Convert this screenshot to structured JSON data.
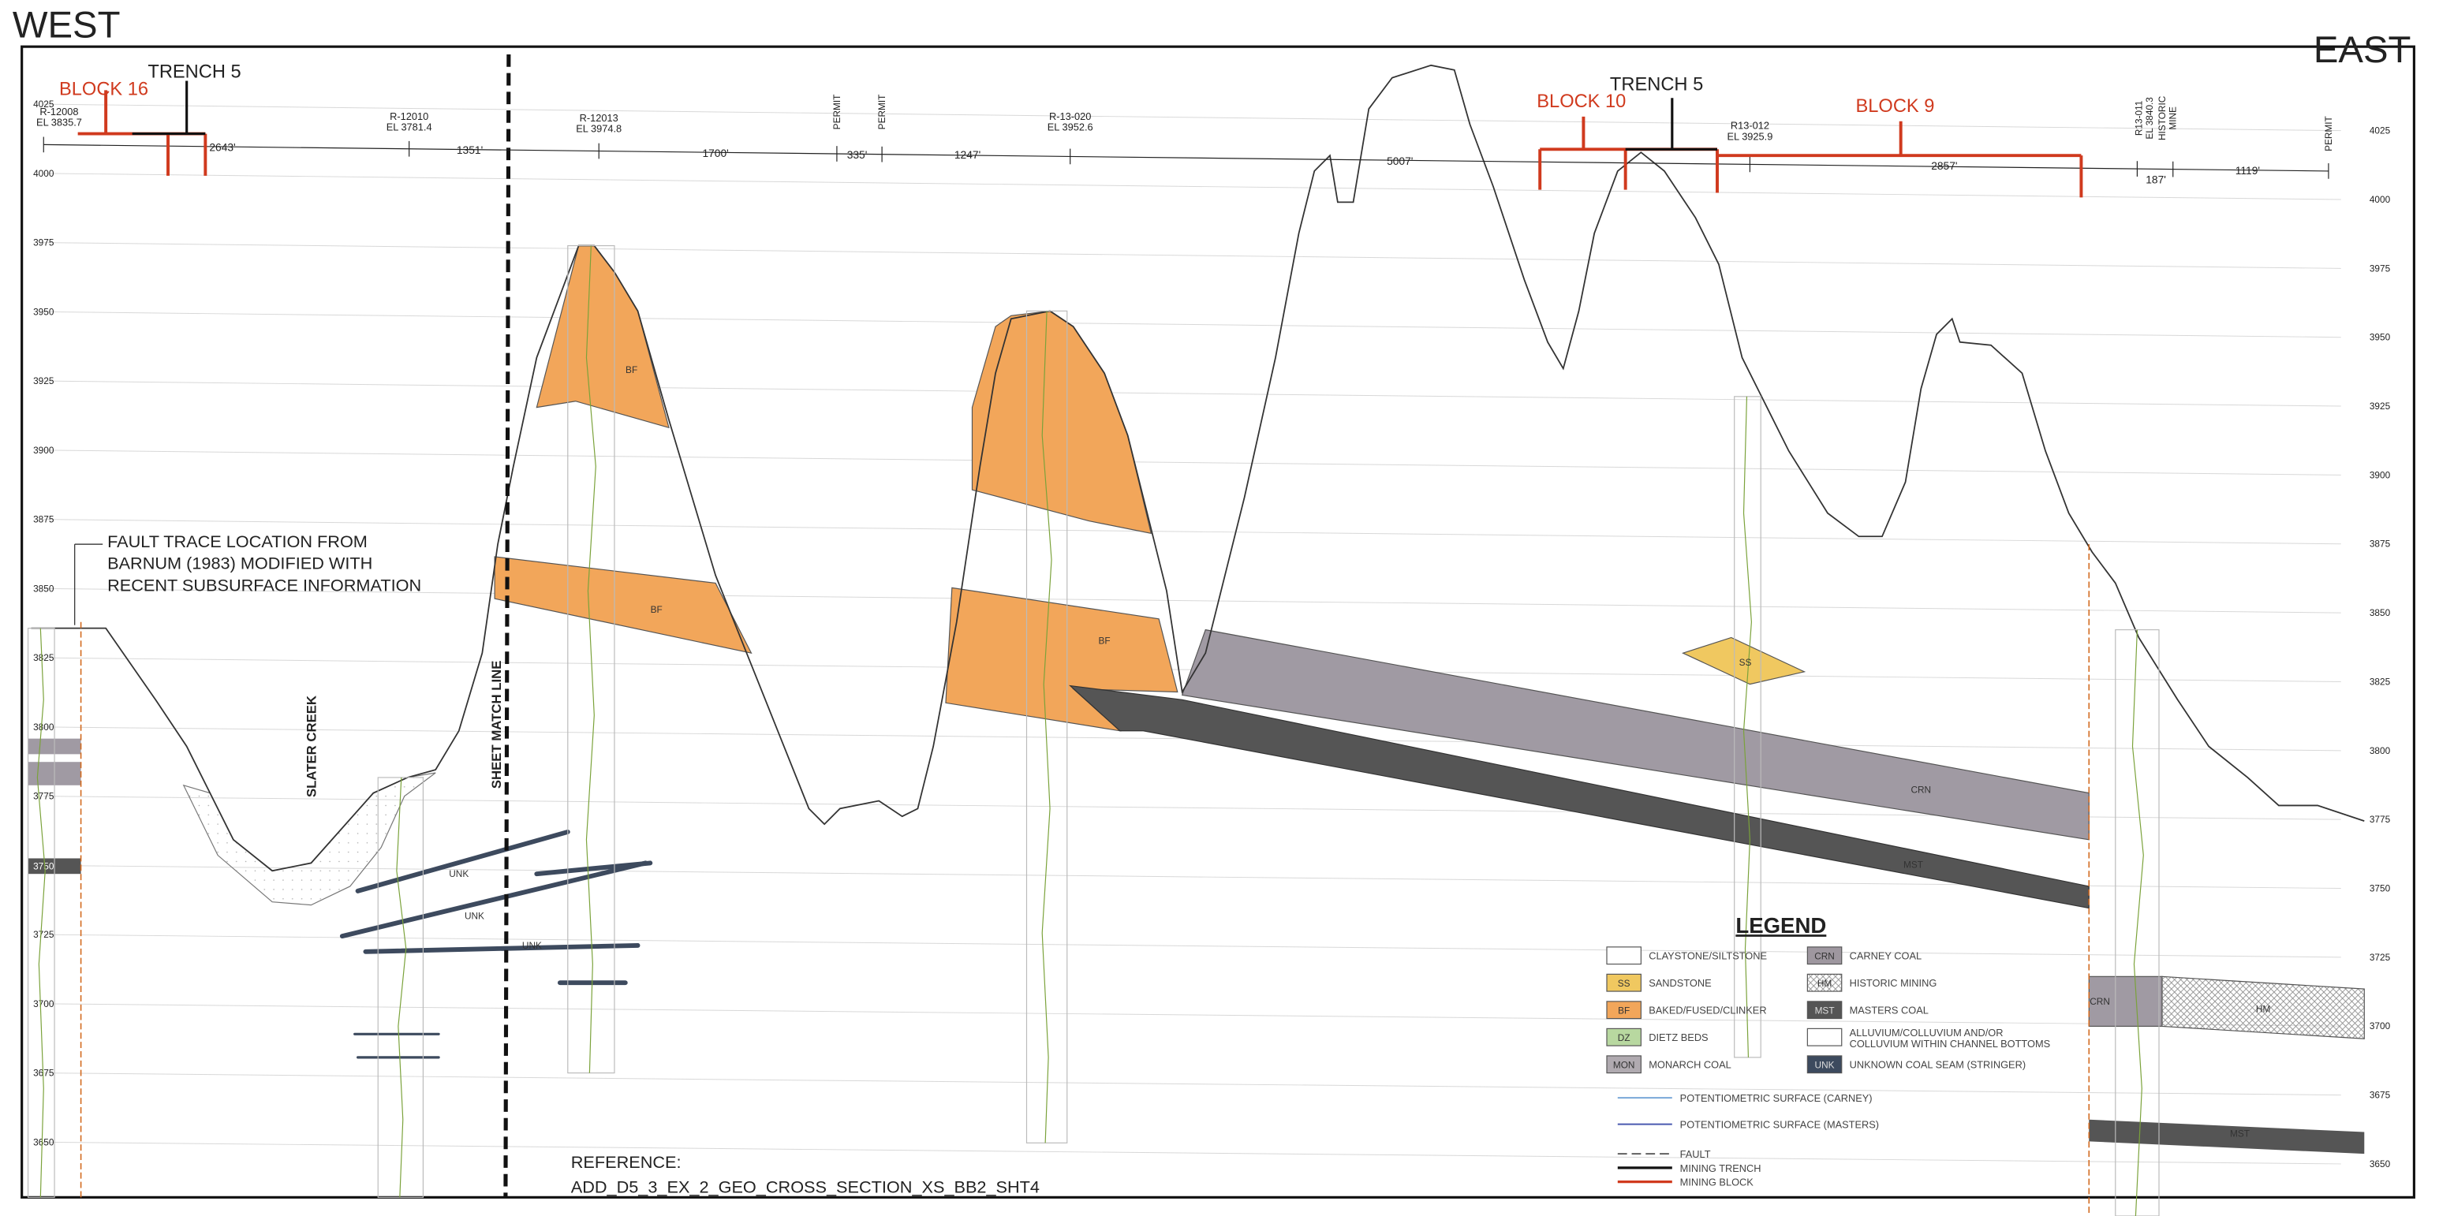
{
  "header": {
    "west": "WEST",
    "east": "EAST"
  },
  "elevation_left": [
    "4025",
    "4000",
    "3975",
    "3950",
    "3925",
    "3900",
    "3875",
    "3850",
    "3825",
    "3800",
    "3775",
    "3750",
    "3725",
    "3700",
    "3675",
    "3650"
  ],
  "elevation_right": [
    "4025",
    "4000",
    "3975",
    "3950",
    "3925",
    "3900",
    "3875",
    "3850",
    "3825",
    "3800",
    "3775",
    "3750",
    "3725",
    "3700",
    "3675",
    "3650"
  ],
  "markers": {
    "block_16": "BLOCK 16",
    "trench_5_west": "TRENCH 5",
    "block_10": "BLOCK 10",
    "trench_5_east": "TRENCH 5",
    "block_9": "BLOCK 9"
  },
  "wells": [
    {
      "id": "R-12008",
      "el": "EL 3835.7"
    },
    {
      "id": "R-12010",
      "el": "EL 3781.4"
    },
    {
      "id": "R-12013",
      "el": "EL 3974.8"
    },
    {
      "id": "PERMIT"
    },
    {
      "id": "PERMIT"
    },
    {
      "id": "R-13-020",
      "el": "EL 3952.6"
    },
    {
      "id": "R13-012",
      "el": "EL 3925.9"
    },
    {
      "id": "R13-011",
      "el": "EL 3840.3"
    },
    {
      "id": "HISTORIC",
      "el": "MINE"
    },
    {
      "id": "PERMIT"
    }
  ],
  "distances": [
    "2643'",
    "1351'",
    "1700'",
    "335'",
    "1247'",
    "5007'",
    "2857'",
    "187'",
    "1119'"
  ],
  "annotation": [
    "FAULT TRACE LOCATION FROM",
    "BARNUM (1983) MODIFIED WITH",
    "RECENT SUBSURFACE INFORMATION"
  ],
  "labels": {
    "slater_creek": "SLATER CREEK",
    "sheet_match_line": "SHEET MATCH LINE",
    "coal_elevation": "3750"
  },
  "units": [
    "BF",
    "BF",
    "BF",
    "SS",
    "CRN",
    "MST",
    "CRN",
    "HM",
    "MST",
    "UNK",
    "UNK",
    "UNK"
  ],
  "legend": {
    "title": "LEGEND",
    "items": [
      {
        "label": "CLAYSTONE/SILTSTONE"
      },
      {
        "code": "SS",
        "label": "SANDSTONE"
      },
      {
        "code": "BF",
        "label": "BAKED/FUSED/CLINKER"
      },
      {
        "code": "DZ",
        "label": "DIETZ BEDS"
      },
      {
        "code": "MON",
        "label": "MONARCH COAL"
      },
      {
        "code": "CRN",
        "label": "CARNEY COAL"
      },
      {
        "code": "HM",
        "label": "HISTORIC MINING"
      },
      {
        "code": "MST",
        "label": "MASTERS COAL"
      },
      {
        "label": "ALLUVIUM/COLLUVIUM AND/OR",
        "label2": "COLLUVIUM WITHIN CHANNEL BOTTOMS"
      },
      {
        "code": "UNK",
        "label": "UNKNOWN COAL SEAM (STRINGER)"
      }
    ],
    "lines": [
      "POTENTIOMETRIC SURFACE (CARNEY)",
      "POTENTIOMETRIC SURFACE (MASTERS)",
      "FAULT",
      "MINING TRENCH",
      "MINING BLOCK"
    ]
  },
  "reference": {
    "label": "REFERENCE:",
    "file": "ADD_D5_3_EX_2_GEO_CROSS_SECTION_XS_BB2_SHT4"
  }
}
